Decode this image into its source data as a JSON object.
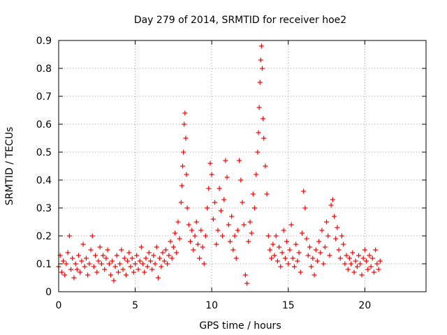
{
  "chart_data": {
    "type": "scatter",
    "title": "Day 279 of 2014, SRMTID for receiver hoe2",
    "xlabel": "GPS time / hours",
    "ylabel": "SRMTID / TECUs",
    "xlim": [
      0,
      24
    ],
    "ylim": [
      0,
      0.9
    ],
    "xticks": [
      0,
      5,
      10,
      15,
      20
    ],
    "xtick_labels": [
      "0",
      "5",
      "10",
      "15",
      "20"
    ],
    "yticks": [
      0,
      0.1,
      0.2,
      0.3,
      0.4,
      0.5,
      0.6,
      0.7,
      0.8,
      0.9
    ],
    "ytick_labels": [
      "0",
      "0.1",
      "0.2",
      "0.3",
      "0.4",
      "0.5",
      "0.6",
      "0.7",
      "0.8",
      "0.9"
    ],
    "grid": true,
    "marker": "+",
    "series": [
      {
        "name": "hoe2",
        "color": "#ff0000",
        "points": [
          [
            0.0,
            0.09
          ],
          [
            0.1,
            0.13
          ],
          [
            0.2,
            0.07
          ],
          [
            0.3,
            0.11
          ],
          [
            0.4,
            0.06
          ],
          [
            0.5,
            0.1
          ],
          [
            0.6,
            0.14
          ],
          [
            0.7,
            0.2
          ],
          [
            0.8,
            0.08
          ],
          [
            0.9,
            0.12
          ],
          [
            1.0,
            0.05
          ],
          [
            1.1,
            0.1
          ],
          [
            1.2,
            0.08
          ],
          [
            1.3,
            0.13
          ],
          [
            1.4,
            0.07
          ],
          [
            1.5,
            0.11
          ],
          [
            1.6,
            0.17
          ],
          [
            1.7,
            0.09
          ],
          [
            1.8,
            0.12
          ],
          [
            1.9,
            0.06
          ],
          [
            2.0,
            0.1
          ],
          [
            2.1,
            0.15
          ],
          [
            2.2,
            0.2
          ],
          [
            2.3,
            0.09
          ],
          [
            2.4,
            0.13
          ],
          [
            2.5,
            0.07
          ],
          [
            2.6,
            0.11
          ],
          [
            2.7,
            0.16
          ],
          [
            2.8,
            0.1
          ],
          [
            2.9,
            0.13
          ],
          [
            3.0,
            0.08
          ],
          [
            3.1,
            0.12
          ],
          [
            3.2,
            0.15
          ],
          [
            3.3,
            0.1
          ],
          [
            3.4,
            0.06
          ],
          [
            3.5,
            0.11
          ],
          [
            3.6,
            0.04
          ],
          [
            3.7,
            0.09
          ],
          [
            3.8,
            0.13
          ],
          [
            3.9,
            0.07
          ],
          [
            4.0,
            0.1
          ],
          [
            4.1,
            0.15
          ],
          [
            4.2,
            0.08
          ],
          [
            4.3,
            0.12
          ],
          [
            4.4,
            0.06
          ],
          [
            4.5,
            0.11
          ],
          [
            4.6,
            0.14
          ],
          [
            4.7,
            0.09
          ],
          [
            4.8,
            0.12
          ],
          [
            4.9,
            0.07
          ],
          [
            5.0,
            0.1
          ],
          [
            5.1,
            0.13
          ],
          [
            5.2,
            0.08
          ],
          [
            5.3,
            0.11
          ],
          [
            5.4,
            0.16
          ],
          [
            5.5,
            0.1
          ],
          [
            5.6,
            0.07
          ],
          [
            5.7,
            0.12
          ],
          [
            5.8,
            0.09
          ],
          [
            5.9,
            0.14
          ],
          [
            6.0,
            0.11
          ],
          [
            6.1,
            0.08
          ],
          [
            6.2,
            0.13
          ],
          [
            6.3,
            0.1
          ],
          [
            6.4,
            0.16
          ],
          [
            6.5,
            0.05
          ],
          [
            6.6,
            0.12
          ],
          [
            6.7,
            0.09
          ],
          [
            6.8,
            0.14
          ],
          [
            6.9,
            0.11
          ],
          [
            7.0,
            0.15
          ],
          [
            7.1,
            0.1
          ],
          [
            7.2,
            0.13
          ],
          [
            7.3,
            0.18
          ],
          [
            7.4,
            0.12
          ],
          [
            7.5,
            0.16
          ],
          [
            7.6,
            0.21
          ],
          [
            7.7,
            0.14
          ],
          [
            7.8,
            0.25
          ],
          [
            7.9,
            0.19
          ],
          [
            8.0,
            0.32
          ],
          [
            8.05,
            0.38
          ],
          [
            8.1,
            0.45
          ],
          [
            8.15,
            0.5
          ],
          [
            8.2,
            0.6
          ],
          [
            8.25,
            0.64
          ],
          [
            8.3,
            0.55
          ],
          [
            8.35,
            0.42
          ],
          [
            8.4,
            0.3
          ],
          [
            8.5,
            0.24
          ],
          [
            8.6,
            0.18
          ],
          [
            8.7,
            0.22
          ],
          [
            8.8,
            0.15
          ],
          [
            8.9,
            0.2
          ],
          [
            9.0,
            0.25
          ],
          [
            9.1,
            0.17
          ],
          [
            9.2,
            0.12
          ],
          [
            9.3,
            0.22
          ],
          [
            9.4,
            0.16
          ],
          [
            9.5,
            0.1
          ],
          [
            9.6,
            0.2
          ],
          [
            9.7,
            0.3
          ],
          [
            9.8,
            0.37
          ],
          [
            9.9,
            0.46
          ],
          [
            10.0,
            0.42
          ],
          [
            10.1,
            0.26
          ],
          [
            10.2,
            0.32
          ],
          [
            10.3,
            0.17
          ],
          [
            10.4,
            0.22
          ],
          [
            10.5,
            0.37
          ],
          [
            10.6,
            0.29
          ],
          [
            10.7,
            0.2
          ],
          [
            10.8,
            0.33
          ],
          [
            10.9,
            0.47
          ],
          [
            11.0,
            0.41
          ],
          [
            11.1,
            0.24
          ],
          [
            11.2,
            0.18
          ],
          [
            11.3,
            0.27
          ],
          [
            11.4,
            0.15
          ],
          [
            11.5,
            0.2
          ],
          [
            11.6,
            0.12
          ],
          [
            11.7,
            0.22
          ],
          [
            11.8,
            0.47
          ],
          [
            11.9,
            0.4
          ],
          [
            12.0,
            0.32
          ],
          [
            12.1,
            0.24
          ],
          [
            12.2,
            0.06
          ],
          [
            12.3,
            0.03
          ],
          [
            12.4,
            0.18
          ],
          [
            12.5,
            0.25
          ],
          [
            12.6,
            0.21
          ],
          [
            12.7,
            0.35
          ],
          [
            12.8,
            0.3
          ],
          [
            12.9,
            0.42
          ],
          [
            13.0,
            0.5
          ],
          [
            13.05,
            0.57
          ],
          [
            13.1,
            0.66
          ],
          [
            13.15,
            0.75
          ],
          [
            13.2,
            0.83
          ],
          [
            13.25,
            0.88
          ],
          [
            13.3,
            0.8
          ],
          [
            13.35,
            0.62
          ],
          [
            13.4,
            0.55
          ],
          [
            13.5,
            0.45
          ],
          [
            13.6,
            0.35
          ],
          [
            13.7,
            0.2
          ],
          [
            13.8,
            0.15
          ],
          [
            13.9,
            0.12
          ],
          [
            14.0,
            0.17
          ],
          [
            14.1,
            0.13
          ],
          [
            14.2,
            0.2
          ],
          [
            14.3,
            0.11
          ],
          [
            14.4,
            0.16
          ],
          [
            14.5,
            0.09
          ],
          [
            14.6,
            0.14
          ],
          [
            14.7,
            0.22
          ],
          [
            14.8,
            0.12
          ],
          [
            14.9,
            0.18
          ],
          [
            15.0,
            0.1
          ],
          [
            15.1,
            0.15
          ],
          [
            15.2,
            0.24
          ],
          [
            15.3,
            0.12
          ],
          [
            15.4,
            0.09
          ],
          [
            15.5,
            0.17
          ],
          [
            15.6,
            0.11
          ],
          [
            15.7,
            0.14
          ],
          [
            15.8,
            0.07
          ],
          [
            15.9,
            0.21
          ],
          [
            16.0,
            0.36
          ],
          [
            16.1,
            0.3
          ],
          [
            16.2,
            0.19
          ],
          [
            16.3,
            0.13
          ],
          [
            16.4,
            0.16
          ],
          [
            16.5,
            0.09
          ],
          [
            16.6,
            0.12
          ],
          [
            16.7,
            0.06
          ],
          [
            16.8,
            0.15
          ],
          [
            16.9,
            0.11
          ],
          [
            17.0,
            0.18
          ],
          [
            17.1,
            0.14
          ],
          [
            17.2,
            0.22
          ],
          [
            17.3,
            0.1
          ],
          [
            17.4,
            0.16
          ],
          [
            17.5,
            0.25
          ],
          [
            17.6,
            0.2
          ],
          [
            17.7,
            0.13
          ],
          [
            17.8,
            0.31
          ],
          [
            17.9,
            0.33
          ],
          [
            18.0,
            0.27
          ],
          [
            18.1,
            0.19
          ],
          [
            18.2,
            0.23
          ],
          [
            18.3,
            0.15
          ],
          [
            18.4,
            0.12
          ],
          [
            18.5,
            0.2
          ],
          [
            18.6,
            0.17
          ],
          [
            18.7,
            0.1
          ],
          [
            18.8,
            0.13
          ],
          [
            18.9,
            0.08
          ],
          [
            19.0,
            0.12
          ],
          [
            19.1,
            0.1
          ],
          [
            19.2,
            0.14
          ],
          [
            19.3,
            0.07
          ],
          [
            19.4,
            0.11
          ],
          [
            19.5,
            0.09
          ],
          [
            19.6,
            0.13
          ],
          [
            19.7,
            0.1
          ],
          [
            19.8,
            0.06
          ],
          [
            19.9,
            0.12
          ],
          [
            20.0,
            0.15
          ],
          [
            20.1,
            0.11
          ],
          [
            20.2,
            0.08
          ],
          [
            20.3,
            0.13
          ],
          [
            20.4,
            0.09
          ],
          [
            20.5,
            0.12
          ],
          [
            20.6,
            0.07
          ],
          [
            20.7,
            0.15
          ],
          [
            20.8,
            0.1
          ],
          [
            20.9,
            0.08
          ],
          [
            21.0,
            0.11
          ]
        ]
      }
    ]
  }
}
